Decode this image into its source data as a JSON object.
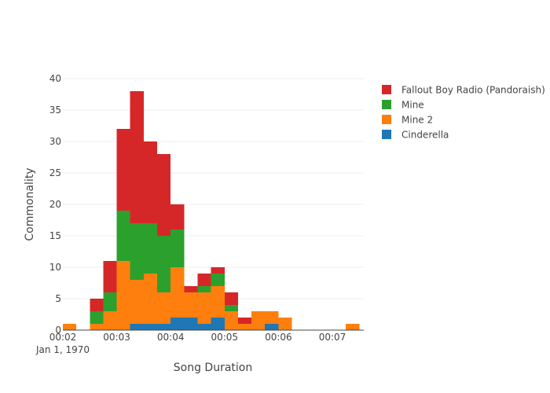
{
  "chart_data": {
    "type": "bar",
    "barmode": "stack",
    "xlabel": "Song Duration",
    "ylabel": "Commonality",
    "ylim": [
      0,
      40
    ],
    "y_ticks": [
      0,
      5,
      10,
      15,
      20,
      25,
      30,
      35,
      40
    ],
    "x_ticks": [
      "00:02",
      "00:03",
      "00:04",
      "00:05",
      "00:06",
      "00:07"
    ],
    "x_tick_values": [
      120,
      180,
      240,
      300,
      360,
      420
    ],
    "x_date_label": "Jan 1, 1970",
    "xlim": [
      120,
      455
    ],
    "bin_width_seconds": 15,
    "bin_starts": [
      "00:02:00",
      "00:02:15",
      "00:02:30",
      "00:02:45",
      "00:03:00",
      "00:03:15",
      "00:03:30",
      "00:03:45",
      "00:04:00",
      "00:04:15",
      "00:04:30",
      "00:04:45",
      "00:05:00",
      "00:05:15",
      "00:05:30",
      "00:05:45",
      "00:06:00",
      "00:06:15",
      "00:06:30",
      "00:06:45",
      "00:07:00",
      "00:07:15"
    ],
    "x": [
      120,
      135,
      150,
      165,
      180,
      195,
      210,
      225,
      240,
      255,
      270,
      285,
      300,
      315,
      330,
      345,
      360,
      375,
      390,
      405,
      420,
      435
    ],
    "grid": true,
    "legend_position": "top-right",
    "series": [
      {
        "name": "Cinderella",
        "color": "#1f77b4",
        "values": [
          0,
          0,
          0,
          0,
          0,
          1,
          1,
          1,
          2,
          2,
          1,
          2,
          0,
          0,
          0,
          1,
          0,
          0,
          0,
          0,
          0,
          0
        ]
      },
      {
        "name": "Mine 2",
        "color": "#ff7f0e",
        "values": [
          1,
          0,
          1,
          3,
          11,
          7,
          8,
          5,
          8,
          4,
          5,
          5,
          3,
          1,
          3,
          2,
          2,
          0,
          0,
          0,
          0,
          1
        ]
      },
      {
        "name": "Mine",
        "color": "#2ca02c",
        "values": [
          0,
          0,
          2,
          3,
          8,
          9,
          8,
          9,
          6,
          0,
          1,
          2,
          1,
          0,
          0,
          0,
          0,
          0,
          0,
          0,
          0,
          0
        ]
      },
      {
        "name": "Fallout Boy Radio (Pandoraish)",
        "color": "#d62728",
        "values": [
          0,
          0,
          2,
          5,
          13,
          21,
          13,
          13,
          4,
          1,
          2,
          1,
          2,
          1,
          0,
          0,
          0,
          0,
          0,
          0,
          0,
          0
        ]
      }
    ],
    "legend_order": [
      "Fallout Boy Radio (Pandoraish)",
      "Mine",
      "Mine 2",
      "Cinderella"
    ]
  }
}
